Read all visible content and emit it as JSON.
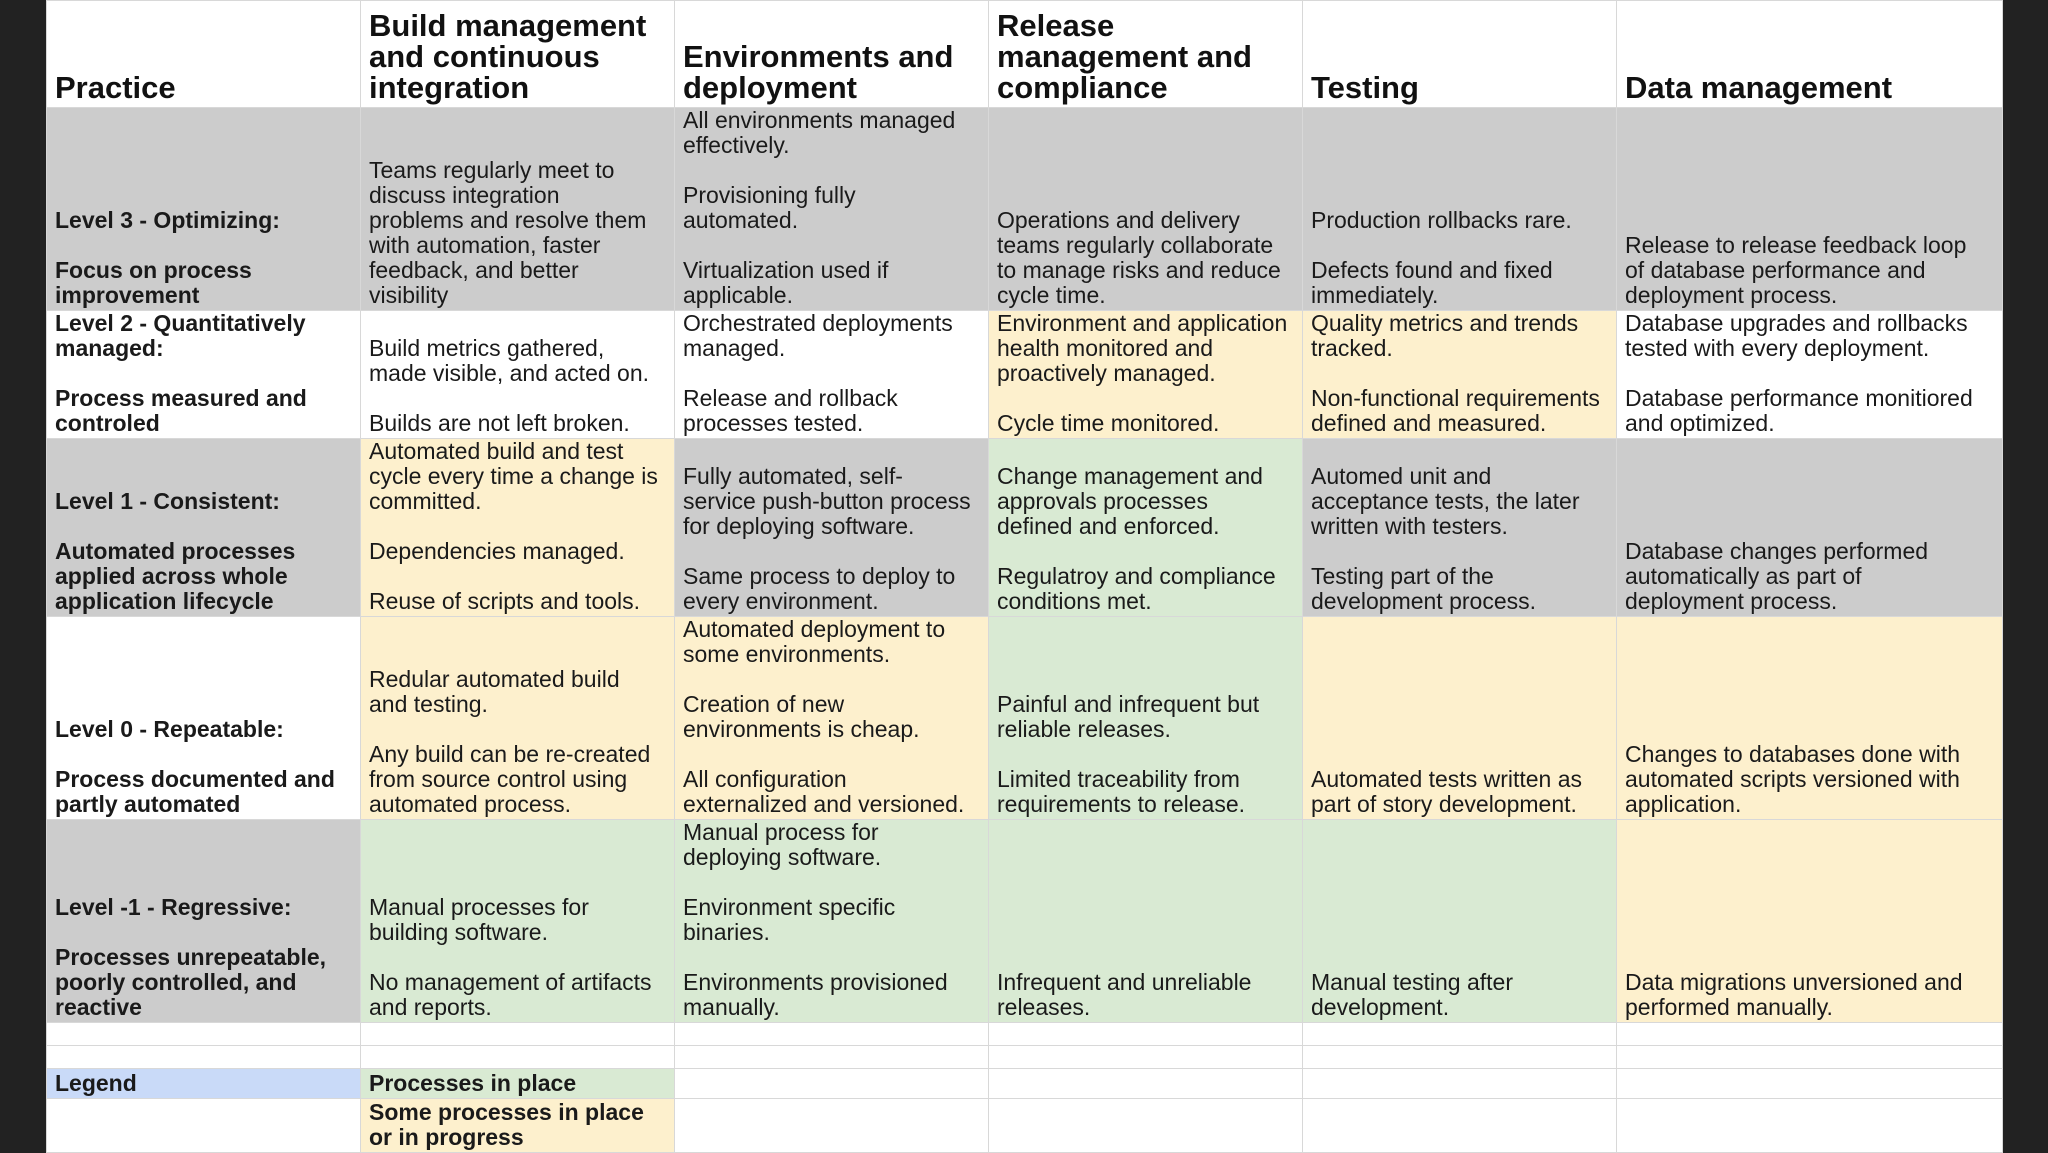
{
  "headers": {
    "practice": "Practice",
    "build": "Build management\nand continuous\nintegration",
    "environments": "Environments and\ndeployment",
    "release": "Release\nmanagement and\ncompliance",
    "testing": "Testing",
    "data": "Data management"
  },
  "colors": {
    "gray": "#cccccc",
    "white": "#ffffff",
    "yellow": "#fdf0cd",
    "green": "#d9ead3",
    "legend_blue": "#c9daf8"
  },
  "rows": [
    {
      "practice": "Level 3 - Optimizing:\n\nFocus on process\nimprovement",
      "build": "Teams regularly meet to\ndiscuss integration\nproblems and resolve them\nwith automation, faster\nfeedback, and better\nvisibility",
      "environments": "All environments managed\neffectively.\n\nProvisioning fully\nautomated.\n\nVirtualization used if\napplicable.",
      "release": "Operations and delivery\nteams regularly collaborate\nto manage risks and reduce\ncycle time.",
      "testing": "Production rollbacks rare.\n\nDefects found and fixed\nimmediately.",
      "data": "Release to release feedback loop\nof database performance and\ndeployment process."
    },
    {
      "practice": "Level 2 - Quantitatively\nmanaged:\n\nProcess measured and\ncontroled",
      "build": "Build metrics gathered,\nmade visible, and acted on.\n\nBuilds are not left broken.",
      "environments": "Orchestrated deployments\nmanaged.\n\nRelease and rollback\nprocesses tested.",
      "release": "Environment and application\nhealth monitored and\nproactively managed.\n\nCycle time monitored.",
      "testing": "Quality metrics and trends\ntracked.\n\nNon-functional requirements\ndefined and measured.",
      "data": "Database upgrades and rollbacks\ntested with every deployment.\n\nDatabase performance monitiored\nand optimized."
    },
    {
      "practice": "Level 1 - Consistent:\n\nAutomated processes\napplied across whole\napplication lifecycle",
      "build": "Automated build and test\ncycle every time a change is\ncommitted.\n\nDependencies managed.\n\nReuse of scripts and tools.",
      "environments": "Fully automated, self-\nservice push-button process\nfor deploying software.\n\nSame process to deploy to\nevery environment.",
      "release": "Change management and\napprovals processes\ndefined and enforced.\n\nRegulatroy and compliance\nconditions met.",
      "testing": "Automed unit and\nacceptance tests, the later\nwritten with testers.\n\nTesting part of the\ndevelopment process.",
      "data": "Database changes performed\nautomatically as part of\ndeployment process."
    },
    {
      "practice": "Level 0 - Repeatable:\n\nProcess documented and\npartly automated",
      "build": "Redular automated build\nand testing.\n\nAny build can be re-created\nfrom source control using\nautomated process.",
      "environments": "Automated deployment to\nsome environments.\n\nCreation of new\nenvironments is cheap.\n\nAll configuration\nexternalized and versioned.",
      "release": "Painful and infrequent but\nreliable releases.\n\nLimited traceability from\nrequirements to release.",
      "testing": "Automated tests written as\npart of story development.",
      "data": "Changes to databases done with\nautomated scripts versioned with\napplication."
    },
    {
      "practice": "Level -1 - Regressive:\n\nProcesses unrepeatable,\npoorly controlled, and\nreactive",
      "build": "Manual processes for\nbuilding software.\n\nNo management of artifacts\nand reports.",
      "environments": "Manual process for\ndeploying software.\n\nEnvironment specific\nbinaries.\n\nEnvironments provisioned\nmanually.",
      "release": "Infrequent and unreliable\nreleases.",
      "testing": "Manual testing after\ndevelopment.",
      "data": "Data migrations unversioned and\nperformed manually."
    }
  ],
  "legend": {
    "title": "Legend",
    "in_place": "Processes in place",
    "in_progress": "Some processes in place\nor in progress"
  }
}
